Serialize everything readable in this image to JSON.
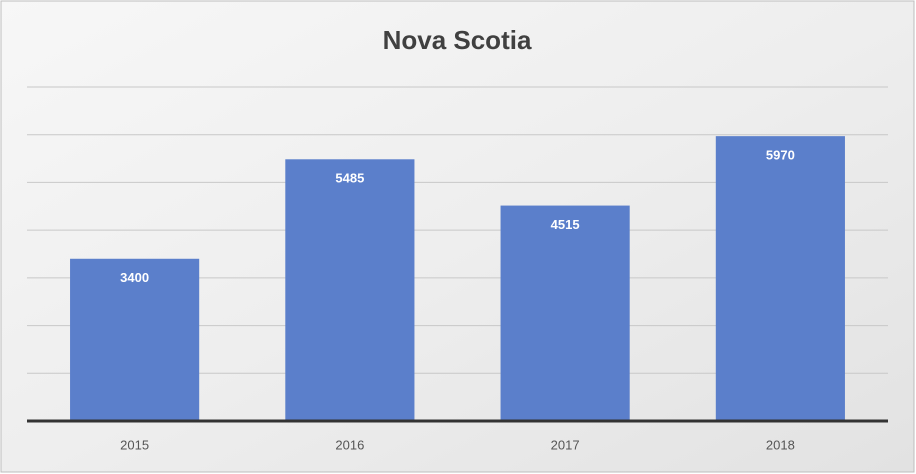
{
  "chart_data": {
    "type": "bar",
    "title": "Nova Scotia",
    "categories": [
      "2015",
      "2016",
      "2017",
      "2018"
    ],
    "values": [
      3400,
      5485,
      4515,
      5970
    ],
    "color": "#5b7fcb",
    "ylim": [
      0,
      7000
    ],
    "yticks": [
      1000,
      2000,
      3000,
      4000,
      5000,
      6000,
      7000
    ],
    "grid": true
  }
}
